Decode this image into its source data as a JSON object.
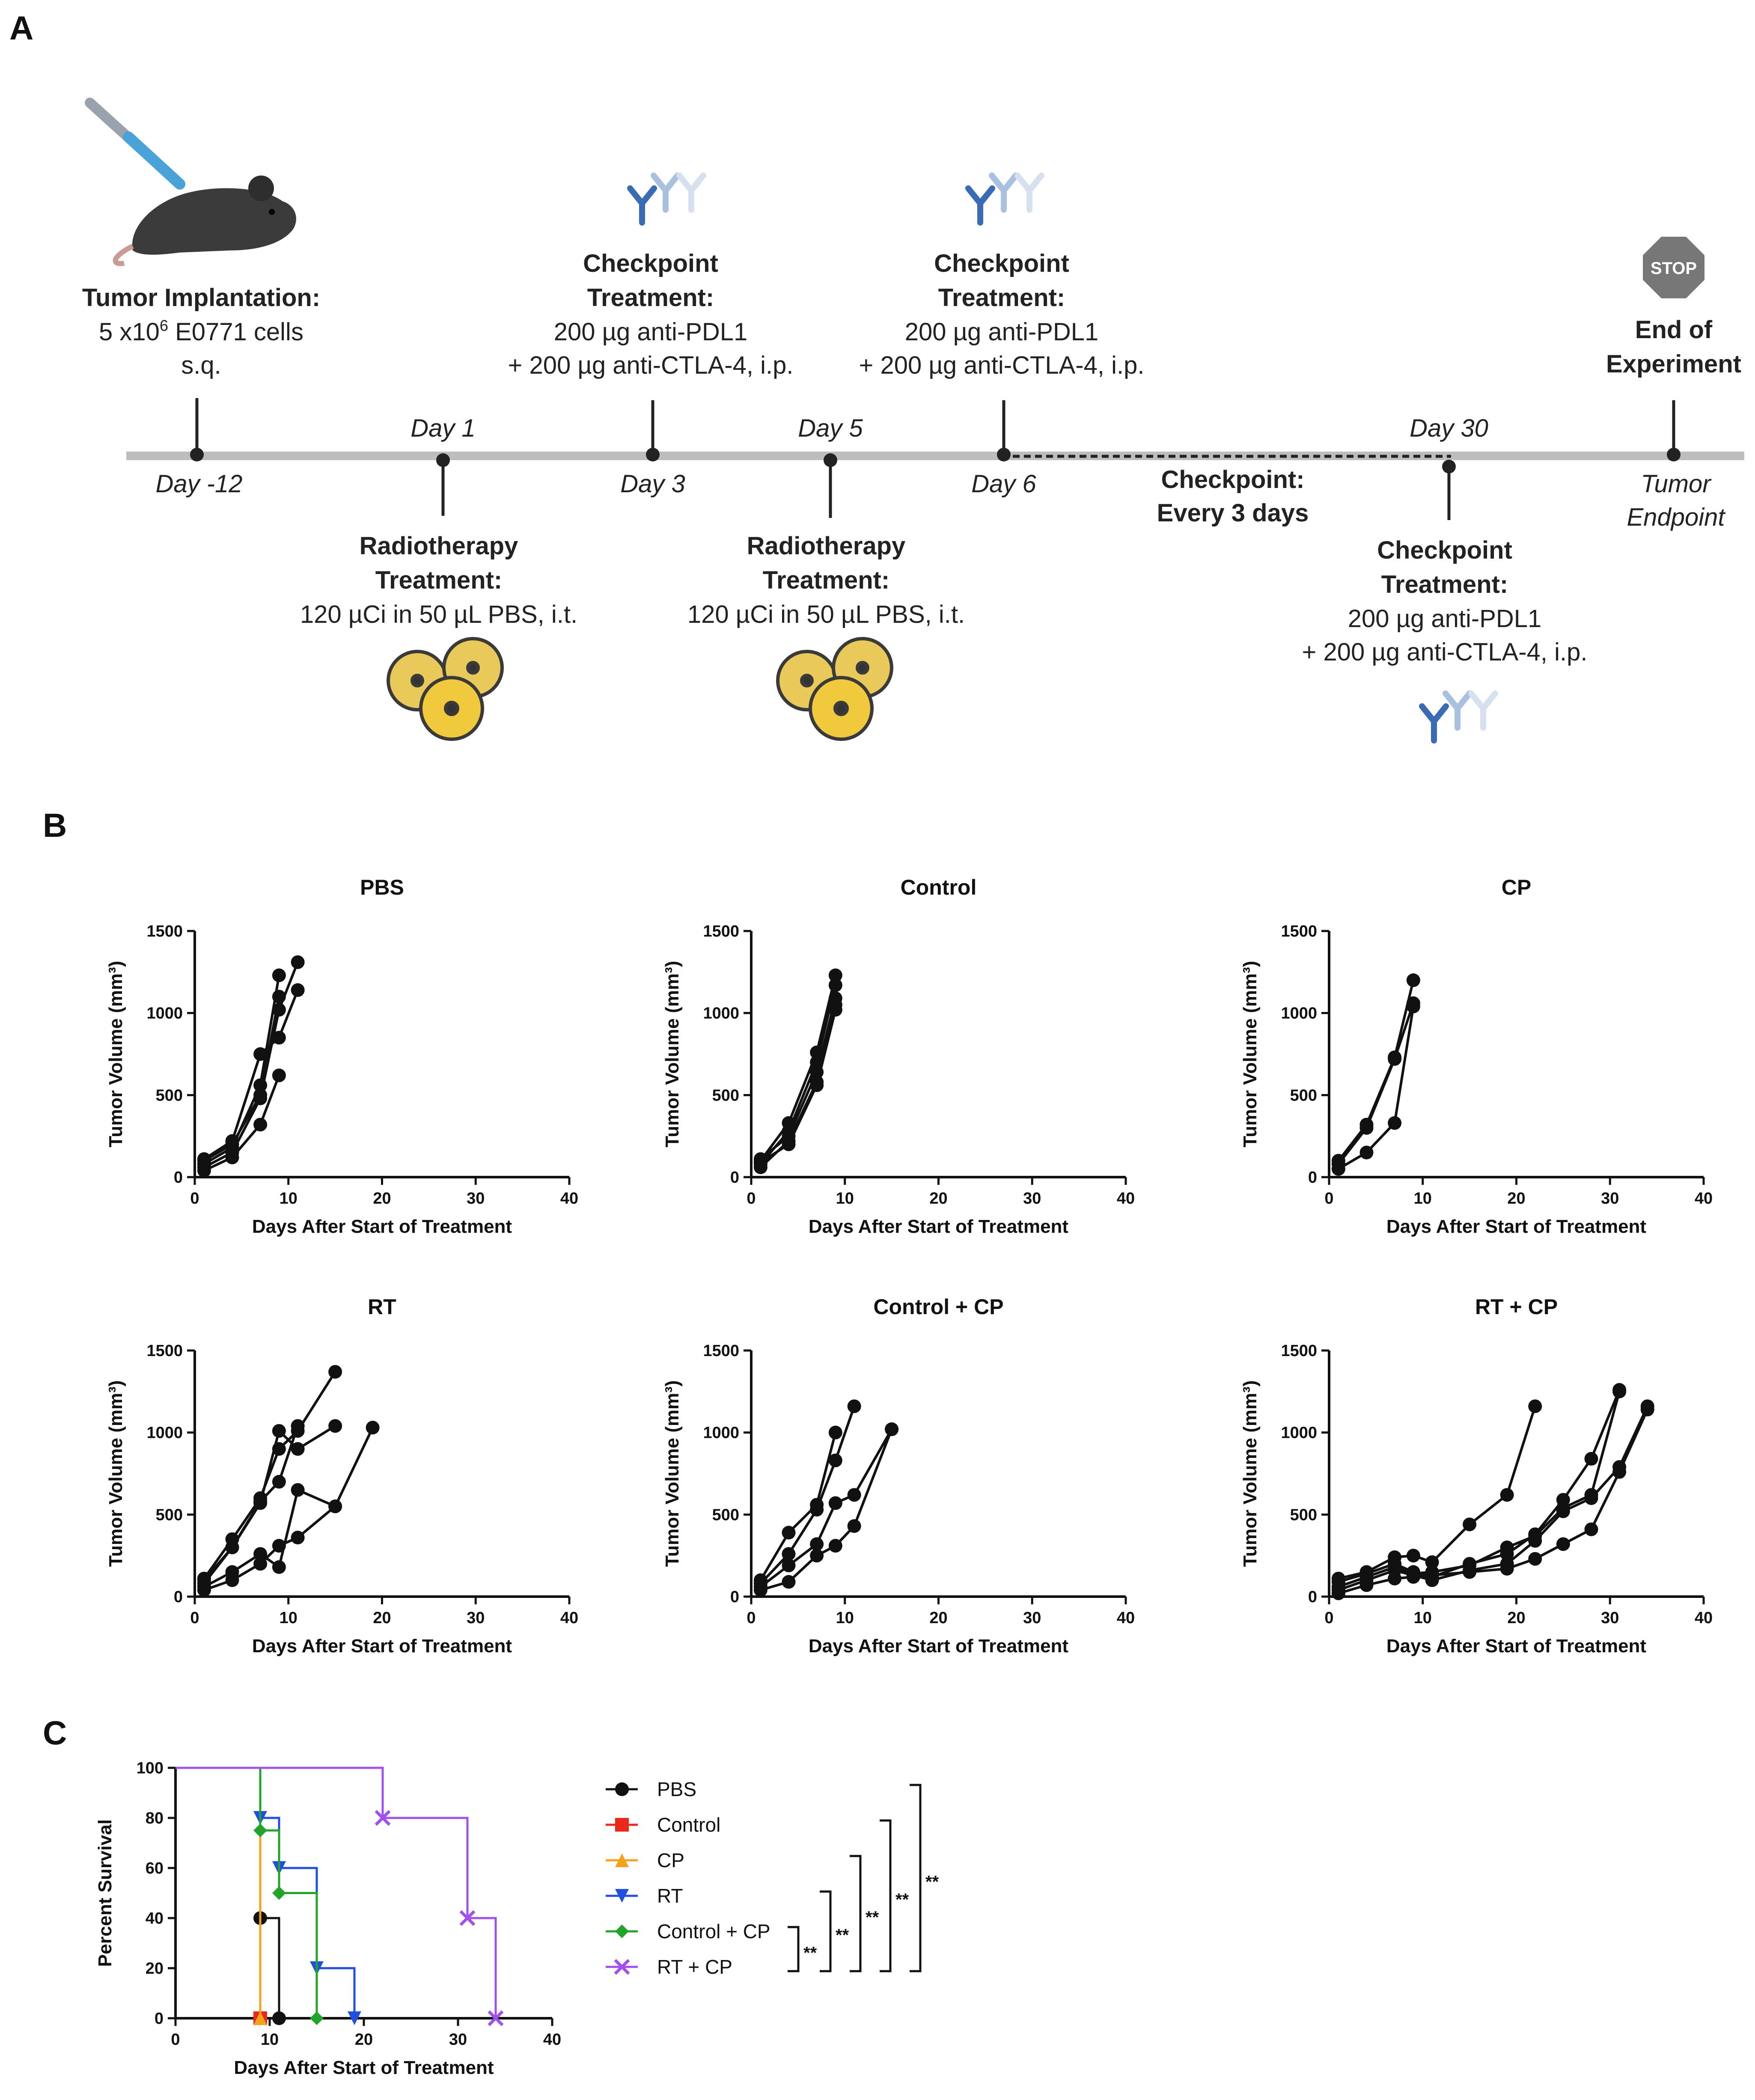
{
  "panels": {
    "a": "A",
    "b": "B",
    "c": "C"
  },
  "timeline": {
    "implant": {
      "title": "Tumor Implantation:",
      "line1": "5 x10",
      "sup": "6",
      "line1b": " E0771 cells",
      "line2": "s.q.",
      "day": "Day -12"
    },
    "rt1": {
      "day": "Day 1",
      "title1": "Radiotherapy",
      "title2": "Treatment:",
      "dose": "120 µCi in 50 µL PBS, i.t."
    },
    "cp1": {
      "day": "Day 3",
      "title1": "Checkpoint",
      "title2": "Treatment:",
      "dose1": "200 µg anti-PDL1",
      "dose2": "+ 200 µg anti-CTLA-4, i.p."
    },
    "rt2": {
      "day": "Day 5",
      "title1": "Radiotherapy",
      "title2": "Treatment:",
      "dose": "120 µCi in 50 µL PBS, i.t."
    },
    "cp2": {
      "day": "Day 6",
      "title1": "Checkpoint",
      "title2": "Treatment:",
      "dose1": "200 µg anti-PDL1",
      "dose2": "+ 200 µg anti-CTLA-4, i.p."
    },
    "every": {
      "line1": "Checkpoint:",
      "line2": "Every 3 days"
    },
    "cp30": {
      "day": "Day 30",
      "title1": "Checkpoint",
      "title2": "Treatment:",
      "dose1": "200 µg anti-PDL1",
      "dose2": "+ 200 µg anti-CTLA-4, i.p."
    },
    "end": {
      "stop": "STOP",
      "title1": "End of",
      "title2": "Experiment",
      "day1": "Tumor",
      "day2": "Endpoint"
    }
  },
  "colors": {
    "timeline_bar": "#bdbdbd",
    "mouse": "#3b3b3b",
    "antibody": "#3a6cb5",
    "radiation": "#e9c95a",
    "stop": "#777777"
  },
  "chart_data": [
    {
      "id": "pbs",
      "type": "line",
      "title": "PBS",
      "xlabel": "Days After Start of Treatment",
      "ylabel": "Tumor Volume (mm³)",
      "xlim": [
        0,
        40
      ],
      "ylim": [
        0,
        1500
      ],
      "xticks": [
        0,
        10,
        20,
        30,
        40
      ],
      "yticks": [
        0,
        500,
        1000,
        1500
      ],
      "series": [
        {
          "x": [
            1,
            4,
            7,
            9
          ],
          "y": [
            80,
            180,
            560,
            1230
          ]
        },
        {
          "x": [
            1,
            4,
            7,
            9
          ],
          "y": [
            100,
            200,
            500,
            1100
          ]
        },
        {
          "x": [
            1,
            4,
            7,
            9,
            11
          ],
          "y": [
            60,
            150,
            480,
            1020,
            1310
          ]
        },
        {
          "x": [
            1,
            4,
            7,
            9,
            11
          ],
          "y": [
            110,
            220,
            750,
            850,
            1140
          ]
        },
        {
          "x": [
            1,
            4,
            7,
            9
          ],
          "y": [
            40,
            120,
            320,
            620
          ]
        }
      ]
    },
    {
      "id": "control",
      "type": "line",
      "title": "Control",
      "xlabel": "Days After Start of Treatment",
      "ylabel": "Tumor Volume (mm³)",
      "xlim": [
        0,
        40
      ],
      "ylim": [
        0,
        1500
      ],
      "xticks": [
        0,
        10,
        20,
        30,
        40
      ],
      "yticks": [
        0,
        500,
        1000,
        1500
      ],
      "series": [
        {
          "x": [
            1,
            4,
            7,
            9
          ],
          "y": [
            100,
            330,
            760,
            1230
          ]
        },
        {
          "x": [
            1,
            4,
            7,
            9
          ],
          "y": [
            80,
            280,
            700,
            1170
          ]
        },
        {
          "x": [
            1,
            4,
            7,
            9
          ],
          "y": [
            110,
            250,
            640,
            1090
          ]
        },
        {
          "x": [
            1,
            4,
            7,
            9
          ],
          "y": [
            60,
            220,
            580,
            1050
          ]
        },
        {
          "x": [
            1,
            4,
            7,
            9
          ],
          "y": [
            90,
            200,
            560,
            1020
          ]
        }
      ]
    },
    {
      "id": "cp",
      "type": "line",
      "title": "CP",
      "xlabel": "Days After Start of Treatment",
      "ylabel": "Tumor Volume (mm³)",
      "xlim": [
        0,
        40
      ],
      "ylim": [
        0,
        1500
      ],
      "xticks": [
        0,
        10,
        20,
        30,
        40
      ],
      "yticks": [
        0,
        500,
        1000,
        1500
      ],
      "series": [
        {
          "x": [
            1,
            4,
            7,
            9
          ],
          "y": [
            100,
            320,
            730,
            1200
          ]
        },
        {
          "x": [
            1,
            4,
            7,
            9
          ],
          "y": [
            80,
            300,
            720,
            1060
          ]
        },
        {
          "x": [
            1,
            4,
            7,
            9
          ],
          "y": [
            50,
            150,
            330,
            1040
          ]
        }
      ]
    },
    {
      "id": "rt",
      "type": "line",
      "title": "RT",
      "xlabel": "Days After Start of Treatment",
      "ylabel": "Tumor Volume (mm³)",
      "xlim": [
        0,
        40
      ],
      "ylim": [
        0,
        1500
      ],
      "xticks": [
        0,
        10,
        20,
        30,
        40
      ],
      "yticks": [
        0,
        500,
        1000,
        1500
      ],
      "series": [
        {
          "x": [
            1,
            4,
            7,
            9,
            11,
            15
          ],
          "y": [
            110,
            350,
            600,
            900,
            1010,
            1370
          ]
        },
        {
          "x": [
            1,
            4,
            7,
            9,
            11,
            15
          ],
          "y": [
            100,
            300,
            570,
            1010,
            900,
            1040
          ]
        },
        {
          "x": [
            1,
            4,
            7,
            9,
            11
          ],
          "y": [
            80,
            300,
            580,
            700,
            1040
          ]
        },
        {
          "x": [
            1,
            4,
            7,
            9,
            11,
            15,
            19
          ],
          "y": [
            60,
            150,
            260,
            180,
            650,
            550,
            1030
          ]
        },
        {
          "x": [
            1,
            4,
            7,
            9,
            11,
            15
          ],
          "y": [
            40,
            100,
            200,
            310,
            360,
            550
          ]
        }
      ]
    },
    {
      "id": "controlcp",
      "type": "line",
      "title": "Control + CP",
      "xlabel": "Days After Start of Treatment",
      "ylabel": "Tumor Volume (mm³)",
      "xlim": [
        0,
        40
      ],
      "ylim": [
        0,
        1500
      ],
      "xticks": [
        0,
        10,
        20,
        30,
        40
      ],
      "yticks": [
        0,
        500,
        1000,
        1500
      ],
      "series": [
        {
          "x": [
            1,
            4,
            7,
            9
          ],
          "y": [
            100,
            390,
            560,
            1000
          ]
        },
        {
          "x": [
            1,
            4,
            7,
            9,
            11
          ],
          "y": [
            80,
            260,
            530,
            830,
            1160
          ]
        },
        {
          "x": [
            1,
            4,
            7,
            9,
            11,
            15
          ],
          "y": [
            60,
            190,
            320,
            570,
            620,
            1020
          ]
        },
        {
          "x": [
            1,
            4,
            7,
            9,
            11,
            15
          ],
          "y": [
            40,
            90,
            250,
            310,
            430,
            1020
          ]
        }
      ]
    },
    {
      "id": "rtcp",
      "type": "line",
      "title": "RT + CP",
      "xlabel": "Days After Start of Treatment",
      "ylabel": "Tumor Volume (mm³)",
      "xlim": [
        0,
        40
      ],
      "ylim": [
        0,
        1500
      ],
      "xticks": [
        0,
        10,
        20,
        30,
        40
      ],
      "yticks": [
        0,
        500,
        1000,
        1500
      ],
      "series": [
        {
          "x": [
            1,
            4,
            7,
            9,
            11,
            15,
            19,
            22
          ],
          "y": [
            110,
            150,
            240,
            250,
            210,
            440,
            620,
            1160
          ]
        },
        {
          "x": [
            1,
            4,
            7,
            9,
            11,
            15,
            19,
            22,
            25,
            28,
            31
          ],
          "y": [
            90,
            140,
            200,
            150,
            120,
            200,
            260,
            380,
            590,
            840,
            1260
          ]
        },
        {
          "x": [
            1,
            4,
            7,
            9,
            11,
            15,
            19,
            22,
            25,
            28,
            31
          ],
          "y": [
            60,
            120,
            180,
            140,
            150,
            190,
            300,
            370,
            540,
            620,
            1250
          ]
        },
        {
          "x": [
            1,
            4,
            7,
            9,
            11,
            15,
            19,
            22,
            25,
            28,
            31,
            34
          ],
          "y": [
            40,
            100,
            160,
            130,
            100,
            160,
            200,
            340,
            520,
            600,
            790,
            1160
          ]
        },
        {
          "x": [
            1,
            4,
            7,
            9,
            11,
            15,
            19,
            22,
            25,
            28,
            31,
            34
          ],
          "y": [
            20,
            70,
            110,
            120,
            130,
            150,
            170,
            230,
            320,
            410,
            760,
            1140
          ]
        }
      ]
    },
    {
      "id": "survival",
      "type": "line",
      "subtype": "step",
      "title": "",
      "xlabel": "Days After Start of Treatment",
      "ylabel": "Percent Survival",
      "xlim": [
        0,
        40
      ],
      "ylim": [
        0,
        100
      ],
      "xticks": [
        0,
        10,
        20,
        30,
        40
      ],
      "yticks": [
        0,
        20,
        40,
        60,
        80,
        100
      ],
      "series": [
        {
          "name": "PBS",
          "color": "#111111",
          "marker": "circle",
          "x": [
            0,
            9,
            9,
            11,
            11
          ],
          "y": [
            100,
            100,
            40,
            40,
            0
          ],
          "markers": [
            [
              9,
              40
            ],
            [
              11,
              0
            ]
          ]
        },
        {
          "name": "Control",
          "color": "#e8291c",
          "marker": "square",
          "x": [
            0,
            9,
            9
          ],
          "y": [
            100,
            100,
            0
          ],
          "markers": [
            [
              9,
              0
            ]
          ]
        },
        {
          "name": "CP",
          "color": "#f5a21b",
          "marker": "triangle-up",
          "x": [
            0,
            9,
            9
          ],
          "y": [
            100,
            100,
            0
          ],
          "markers": [
            [
              9,
              0
            ]
          ]
        },
        {
          "name": "RT",
          "color": "#1f4fe0",
          "marker": "triangle-down",
          "x": [
            0,
            9,
            9,
            11,
            11,
            15,
            15,
            19,
            19
          ],
          "y": [
            100,
            100,
            80,
            80,
            60,
            60,
            20,
            20,
            0
          ],
          "markers": [
            [
              9,
              80
            ],
            [
              11,
              60
            ],
            [
              15,
              20
            ],
            [
              19,
              0
            ]
          ]
        },
        {
          "name": "Control + CP",
          "color": "#22a32a",
          "marker": "diamond",
          "x": [
            0,
            9,
            9,
            11,
            11,
            15,
            15
          ],
          "y": [
            100,
            100,
            75,
            75,
            50,
            50,
            0
          ],
          "markers": [
            [
              9,
              75
            ],
            [
              11,
              50
            ],
            [
              15,
              0
            ]
          ]
        },
        {
          "name": "RT + CP",
          "color": "#a24ff0",
          "marker": "x",
          "x": [
            0,
            22,
            22,
            31,
            31,
            34,
            34
          ],
          "y": [
            100,
            100,
            80,
            80,
            40,
            40,
            0
          ],
          "markers": [
            [
              22,
              80
            ],
            [
              31,
              40
            ],
            [
              34,
              0
            ]
          ]
        }
      ],
      "significance": [
        "**",
        "**",
        "**",
        "**",
        "**"
      ]
    }
  ]
}
